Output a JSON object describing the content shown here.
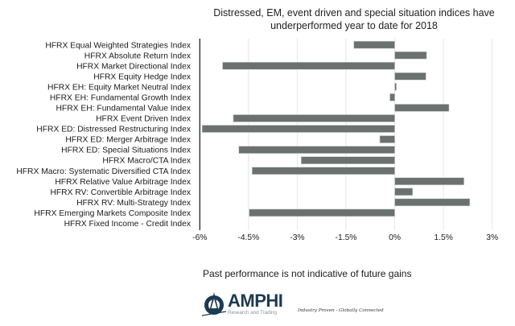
{
  "chart_data": {
    "type": "bar",
    "orientation": "horizontal",
    "title": "Distressed, EM, event driven and special situation indices have underperformed year to date for 2018",
    "title_lines": [
      "Distressed, EM, event driven and special situation indices have",
      "underperformed year to date for 2018"
    ],
    "xlabel": "",
    "ylabel": "",
    "xlim": [
      -6,
      3
    ],
    "xticks": [
      -6,
      -4.5,
      -3,
      -1.5,
      0,
      1.5,
      3
    ],
    "xtick_labels": [
      "-6%",
      "-4.5%",
      "-3%",
      "-1.5%",
      "0%",
      "1.5%",
      "3%"
    ],
    "grid": "vertical",
    "bar_color": "#6b716e",
    "categories": [
      "HFRX Equal Weighted Strategies Index",
      "HFRX Absolute Return Index",
      "HFRX Market Directional Index",
      "HFRX Equity Hedge Index",
      "HFRX EH: Equity Market Neutral Index",
      "HFRX EH: Fundamental Growth Index",
      "HFRX EH: Fundamental Value Index",
      "HFRX Event Driven Index",
      "HFRX ED: Distressed Restructuring Index",
      "HFRX ED: Merger Arbitrage Index",
      "HFRX ED: Special Situations Index",
      "HFRX Macro/CTA Index",
      "HFRX Macro: Systematic Diversified CTA Index",
      "HFRX Relative Value Arbitrage Index",
      "HFRX RV: Convertible Arbitrage Index",
      "HFRX RV: Multi-Strategy Index",
      "HFRX Emerging Markets Composite Index",
      "HFRX Fixed Income - Credit Index"
    ],
    "values": [
      -1.26,
      0.98,
      -5.3,
      0.96,
      0.05,
      -0.15,
      1.67,
      -4.97,
      -5.93,
      -0.46,
      -4.8,
      -2.88,
      -4.39,
      2.13,
      0.55,
      2.31,
      -4.48,
      0.0
    ]
  },
  "footnote": "Past performance is not indicative of future gains",
  "branding": {
    "logo_name": "AMPHI",
    "logo_subtitle": "Research and Trading",
    "tagline": "Industry Proven - Globally Connected",
    "logo_color": "#1d3a52"
  }
}
